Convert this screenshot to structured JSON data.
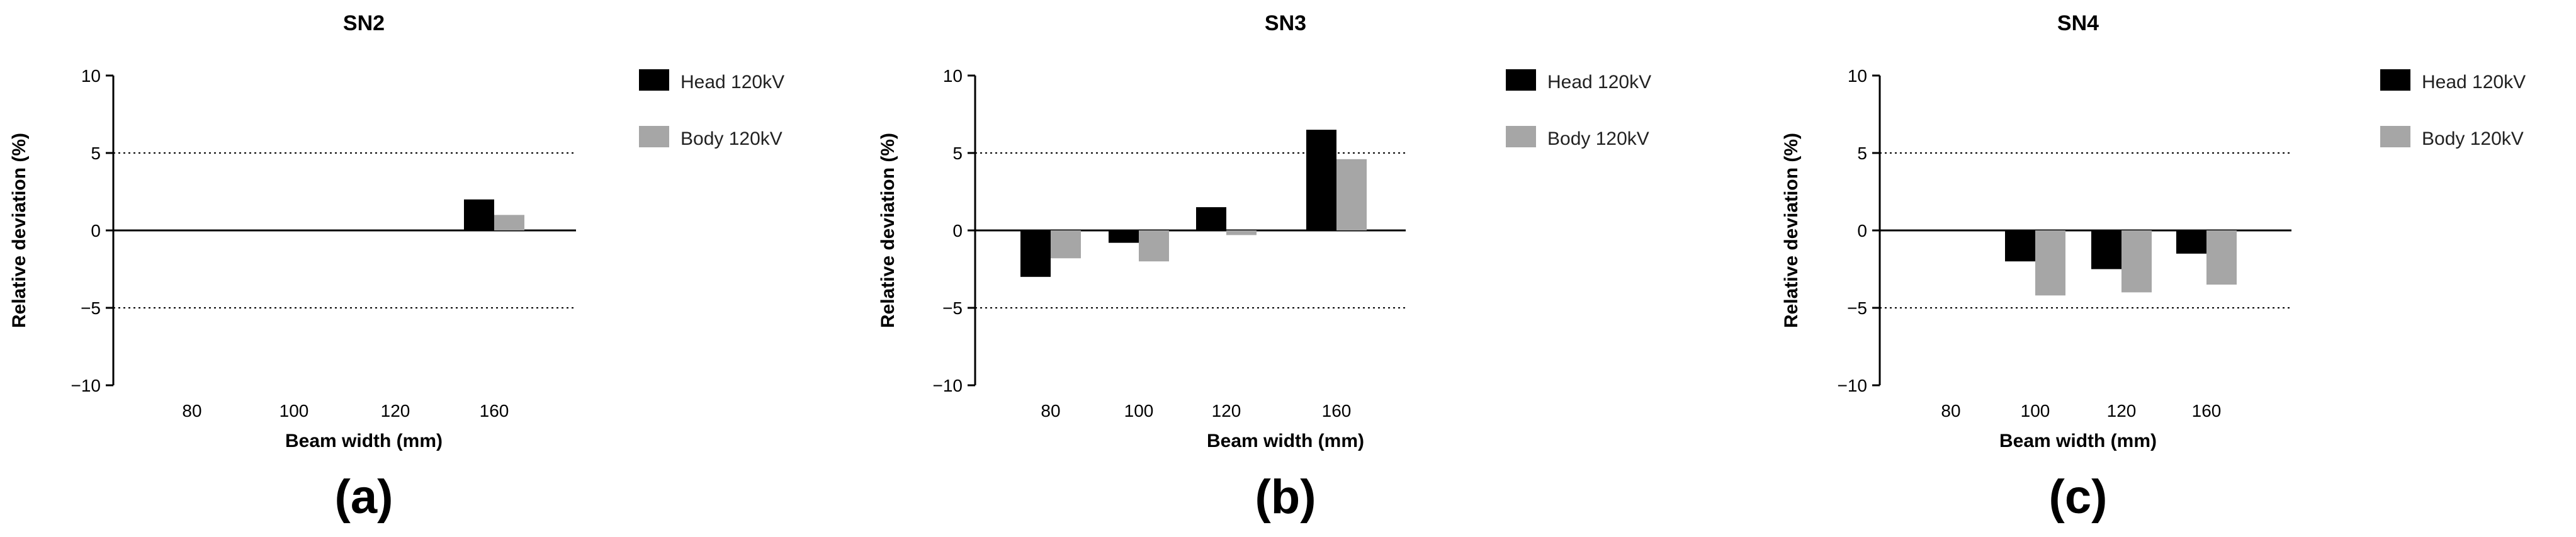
{
  "panels": [
    {
      "label": "(a)",
      "chart_data": {
        "type": "bar",
        "title": "SN2",
        "xlabel": "Beam width (mm)",
        "ylabel": "Relative deviation (%)",
        "categories": [
          "80",
          "100",
          "120",
          "160"
        ],
        "series": [
          {
            "name": "Head 120kV",
            "values": [
              null,
              null,
              null,
              2
            ],
            "color": "#000000"
          },
          {
            "name": "Body 120kV",
            "values": [
              null,
              null,
              null,
              1
            ],
            "color": "#a6a6a6"
          }
        ],
        "ylim": [
          -10,
          10
        ],
        "yticks": [
          10,
          5,
          0,
          -5,
          -10
        ],
        "ytick_labels": [
          "10",
          "5",
          "0",
          "−5",
          "−10"
        ],
        "reference_lines": [
          5,
          -5
        ],
        "legend": "top-right",
        "grid": false
      }
    },
    {
      "label": "(b)",
      "chart_data": {
        "type": "bar",
        "title": "SN3",
        "xlabel": "Beam width (mm)",
        "ylabel": "Relative deviation (%)",
        "categories": [
          "80",
          "100",
          "120",
          "160"
        ],
        "series": [
          {
            "name": "Head 120kV",
            "values": [
              -3,
              -0.8,
              1.5,
              6.5
            ],
            "color": "#000000"
          },
          {
            "name": "Body 120kV",
            "values": [
              -1.8,
              -2,
              -0.3,
              4.6
            ],
            "color": "#a6a6a6"
          }
        ],
        "ylim": [
          -10,
          10
        ],
        "yticks": [
          10,
          5,
          0,
          -5,
          -10
        ],
        "ytick_labels": [
          "10",
          "5",
          "0",
          "−5",
          "−10"
        ],
        "reference_lines": [
          5,
          -5
        ],
        "legend": "top-right",
        "grid": false
      }
    },
    {
      "label": "(c)",
      "chart_data": {
        "type": "bar",
        "title": "SN4",
        "xlabel": "Beam width (mm)",
        "ylabel": "Relative deviation (%)",
        "categories": [
          "80",
          "100",
          "120",
          "160"
        ],
        "series": [
          {
            "name": "Head 120kV",
            "values": [
              null,
              -2,
              -2.5,
              -1.5
            ],
            "color": "#000000"
          },
          {
            "name": "Body 120kV",
            "values": [
              null,
              -4.2,
              -4,
              -3.5
            ],
            "color": "#a6a6a6"
          }
        ],
        "ylim": [
          -10,
          10
        ],
        "yticks": [
          10,
          5,
          0,
          -5,
          -10
        ],
        "ytick_labels": [
          "10",
          "5",
          "0",
          "−5",
          "−10"
        ],
        "reference_lines": [
          5,
          -5
        ],
        "legend": "top-right",
        "grid": false
      }
    }
  ]
}
